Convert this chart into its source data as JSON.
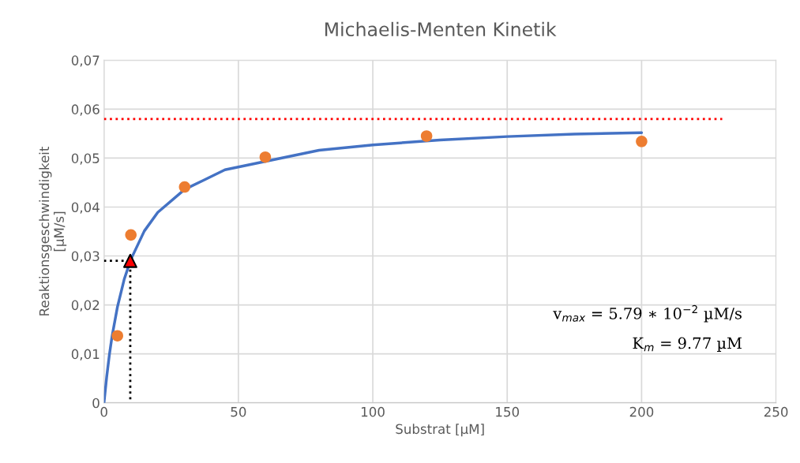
{
  "chart_data": {
    "type": "line",
    "title": "Michaelis-Menten Kinetik",
    "xlabel": "Substrat [µM]",
    "ylabel": "Reaktionsgeschwindigkeit\n[µM/s]",
    "series": [
      {
        "color": "#4472c4",
        "marker": "none",
        "line_style": "solid",
        "x": [
          0,
          1,
          2,
          3,
          5,
          7.5,
          10,
          15,
          20,
          30,
          45,
          80,
          100,
          125,
          150,
          175,
          200
        ],
        "values": [
          0,
          0.0053,
          0.0098,
          0.0136,
          0.0196,
          0.0252,
          0.0293,
          0.0351,
          0.0389,
          0.0436,
          0.0476,
          0.0516,
          0.0527,
          0.0537,
          0.0544,
          0.0549,
          0.0552
        ]
      },
      {
        "type": "scatter",
        "color": "#ed7d31",
        "marker": "circle",
        "x": [
          5,
          10,
          30,
          60,
          120,
          200
        ],
        "values": [
          0.0137,
          0.0343,
          0.0441,
          0.0502,
          0.0545,
          0.0534
        ]
      },
      {
        "color": "#ff0000",
        "marker": "none",
        "line_style": "dotted",
        "x": [
          0,
          230
        ],
        "values": [
          0.058,
          0.058
        ]
      },
      {
        "color": "#000000",
        "marker": "none",
        "line_style": "dotted",
        "x": [
          0,
          9.77,
          9.77
        ],
        "values": [
          0.029,
          0.029,
          0
        ]
      },
      {
        "type": "scatter",
        "color": "#ff0000",
        "marker": "triangle",
        "x": [
          9.77
        ],
        "values": [
          0.029
        ]
      }
    ],
    "xlim": [
      0,
      250
    ],
    "xticks": [
      0,
      50,
      100,
      150,
      200,
      250
    ],
    "ylim": [
      0,
      0.07
    ],
    "yticks": [
      0,
      {
        "value": 0.01,
        "label": "0,01"
      },
      {
        "value": 0.02,
        "label": "0,02"
      },
      {
        "value": 0.03,
        "label": "0,03"
      },
      {
        "value": 0.04,
        "label": "0,04"
      },
      {
        "value": 0.05,
        "label": "0,05"
      },
      {
        "value": 0.06,
        "label": "0,06"
      },
      {
        "value": 0.07,
        "label": "0,07"
      }
    ],
    "grid": true,
    "legend": false,
    "annotations": [
      "v$_{max}$ = 5.79 ∗ 10$^{−2}$ µM/s",
      "K$_{m}$ = 9.77 µM"
    ]
  }
}
